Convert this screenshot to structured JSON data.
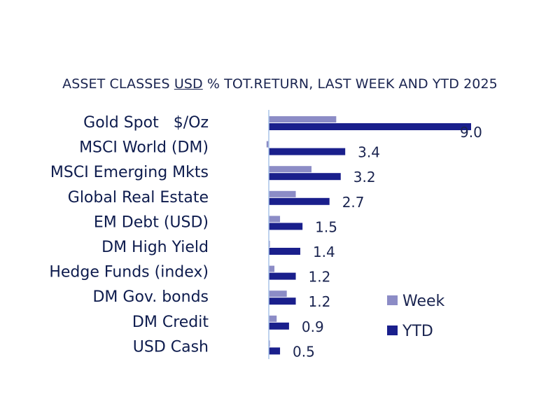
{
  "chart_data": {
    "type": "bar",
    "title_parts": [
      "ASSET CLASSES ",
      "USD",
      " % TOT.RETURN, LAST WEEK AND YTD 2025"
    ],
    "categories": [
      "Gold Spot   $/Oz",
      "MSCI World (DM)",
      "MSCI Emerging Mkts",
      "Global Real Estate",
      "EM Debt (USD)",
      "DM High Yield",
      "Hedge Funds (index)",
      "DM Gov. bonds",
      "DM Credit",
      "USD Cash"
    ],
    "series": [
      {
        "name": "Week",
        "color": "#8c8cc6",
        "values": [
          3.0,
          -0.1,
          1.9,
          1.2,
          0.5,
          0.05,
          0.25,
          0.8,
          0.35,
          0.05
        ]
      },
      {
        "name": "YTD",
        "color": "#1a1f8c",
        "values": [
          9.0,
          3.4,
          3.2,
          2.7,
          1.5,
          1.4,
          1.2,
          1.2,
          0.9,
          0.5
        ]
      }
    ],
    "data_labels": [
      "9.0",
      "3.4",
      "3.2",
      "2.7",
      "1.5",
      "1.4",
      "1.2",
      "1.2",
      "0.9",
      "0.5"
    ],
    "legend_position": "bottom-right",
    "grid": false,
    "ylim": [
      0,
      9.0
    ]
  }
}
